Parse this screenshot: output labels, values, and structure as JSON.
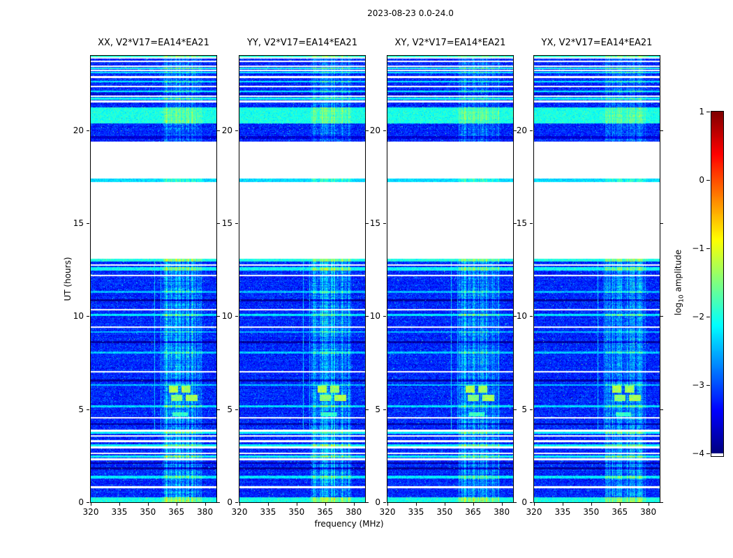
{
  "chart_data": {
    "type": "heatmap",
    "title": "2023-08-23 0.0-24.0",
    "xlabel": "frequency (MHz)",
    "ylabel": "UT (hours)",
    "xlim": [
      320,
      386
    ],
    "ylim": [
      0,
      24
    ],
    "xticks": [
      320,
      335,
      350,
      365,
      380
    ],
    "yticks": [
      0,
      5,
      10,
      15,
      20
    ],
    "plot_bg": "#ffffff",
    "frame_color": "#000000",
    "panels": [
      {
        "title": "XX, V2*V17=EA14*EA21"
      },
      {
        "title": "YY, V2*V17=EA14*EA21"
      },
      {
        "title": "XY, V2*V17=EA14*EA21"
      },
      {
        "title": "YX, V2*V17=EA14*EA21"
      }
    ],
    "colorbar": {
      "label_prefix": "log",
      "label_sub": "10",
      "label_suffix": " amplitude",
      "ticks": [
        1,
        0,
        -1,
        -2,
        -3,
        -4
      ],
      "tick_labels": [
        "1",
        "0",
        "−1",
        "−2",
        "−3",
        "−4"
      ],
      "vmin": -4,
      "vmax": 1,
      "colormap": "jet"
    },
    "features": {
      "background_log_amplitude": -3.2,
      "noise_sigma": 0.22,
      "data_segments_ut": [
        [
          0.0,
          13.08
        ],
        [
          17.2,
          17.4
        ],
        [
          19.38,
          24.0
        ]
      ],
      "gaps_ut": [
        [
          13.08,
          17.2
        ],
        [
          17.4,
          19.38
        ]
      ],
      "rfi_band_mhz": [
        357.5,
        378.5
      ],
      "rfi_boost_lower": 0.55,
      "rfi_boost_upper": 0.33,
      "narrow_rfi_lines": [
        [
          353.4,
          353.9,
          -2.3,
          3.85,
          13.08
        ],
        [
          356.6,
          357.0,
          -2.5,
          3.85,
          13.08
        ]
      ],
      "white_stripes_ut": [
        [
          0.8,
          0.06
        ],
        [
          2.3,
          0.05
        ],
        [
          2.62,
          0.05
        ],
        [
          2.95,
          0.05
        ],
        [
          3.28,
          0.05
        ],
        [
          3.56,
          0.045
        ],
        [
          3.85,
          0.045
        ],
        [
          4.55,
          0.04
        ],
        [
          7.0,
          0.035
        ],
        [
          9.4,
          0.04
        ],
        [
          10.35,
          0.05
        ],
        [
          12.2,
          0.04
        ],
        [
          12.75,
          0.04
        ],
        [
          21.55,
          0.045
        ],
        [
          21.82,
          0.04
        ],
        [
          22.35,
          0.045
        ],
        [
          22.85,
          0.045
        ],
        [
          23.2,
          0.04
        ],
        [
          23.45,
          0.04
        ],
        [
          23.7,
          0.04
        ],
        [
          23.88,
          0.03
        ]
      ],
      "bright_stripes_ut": [
        [
          0.12,
          0.14,
          -2.0
        ],
        [
          1.35,
          0.07,
          -2.2
        ],
        [
          2.45,
          0.06,
          -2.1
        ],
        [
          3.05,
          0.06,
          -2.1
        ],
        [
          3.72,
          0.06,
          -2.2
        ],
        [
          5.15,
          0.05,
          -2.3
        ],
        [
          6.3,
          0.05,
          -2.4
        ],
        [
          8.05,
          0.05,
          -2.4
        ],
        [
          9.15,
          0.05,
          -2.5
        ],
        [
          10.08,
          0.06,
          -2.2
        ],
        [
          11.3,
          0.05,
          -2.5
        ],
        [
          12.55,
          0.09,
          -2.1
        ],
        [
          13.0,
          0.08,
          -2.0
        ],
        [
          17.3,
          0.09,
          -2.3
        ],
        [
          20.8,
          0.42,
          -2.0
        ],
        [
          21.68,
          0.06,
          -2.1
        ],
        [
          22.1,
          0.04,
          -2.2
        ],
        [
          22.6,
          0.04,
          -2.2
        ],
        [
          23.1,
          0.04,
          -2.2
        ],
        [
          23.32,
          0.05,
          -2.0
        ],
        [
          23.97,
          0.05,
          -1.9
        ]
      ],
      "dark_stripes_ut": [
        [
          1.82,
          0.06,
          -3.9
        ],
        [
          2.1,
          0.05,
          -3.85
        ],
        [
          4.2,
          0.05,
          -3.9
        ],
        [
          6.55,
          0.06,
          -3.9
        ],
        [
          8.6,
          0.05,
          -3.85
        ],
        [
          10.85,
          0.06,
          -3.9
        ],
        [
          19.6,
          0.07,
          -3.6
        ],
        [
          21.95,
          0.04,
          -3.7
        ]
      ],
      "blobs": [
        [
          5.9,
          6.28,
          361.0,
          366.0,
          -1.25
        ],
        [
          5.9,
          6.28,
          367.5,
          372.5,
          -1.35
        ],
        [
          5.45,
          5.78,
          362.0,
          368.0,
          -1.45
        ],
        [
          5.45,
          5.78,
          370.0,
          376.0,
          -1.3
        ],
        [
          4.6,
          4.85,
          363.0,
          371.0,
          -1.85
        ]
      ]
    }
  }
}
